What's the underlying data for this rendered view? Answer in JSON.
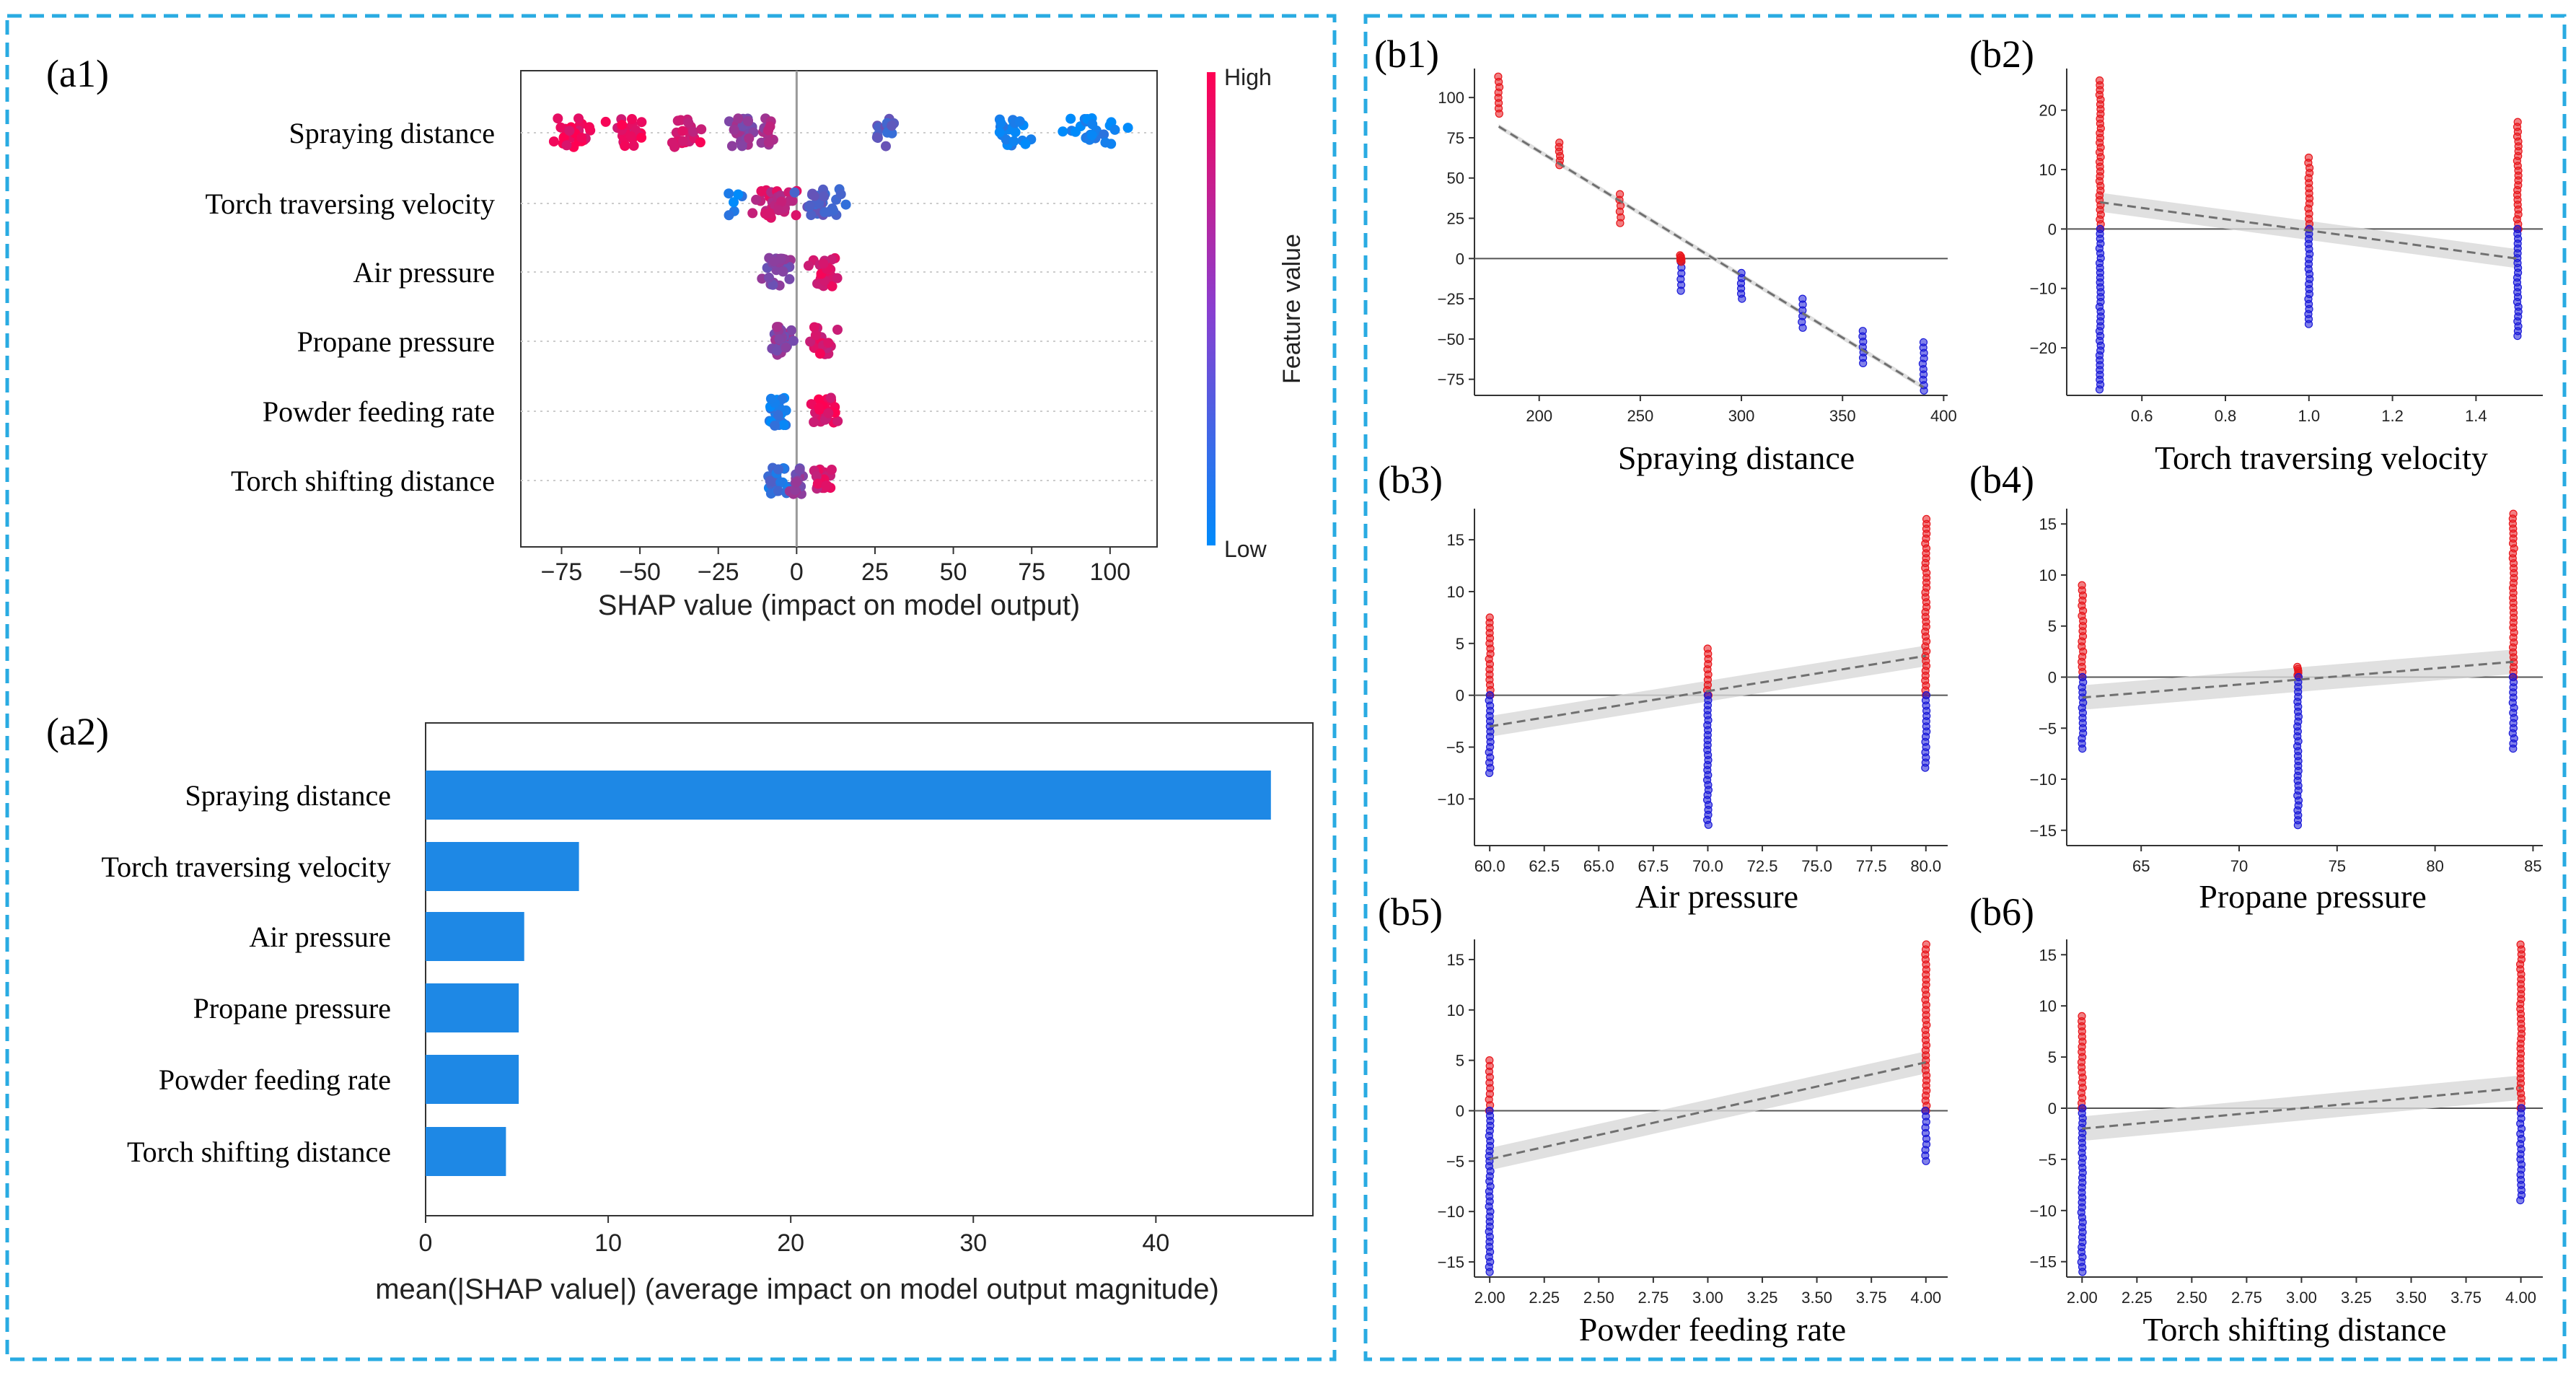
{
  "colors": {
    "frame_dash": "#29abe2",
    "bar_blue": "#1e88e5",
    "high_red": "#ff0052",
    "low_blue": "#008bfb",
    "dep_red": "#e8161b",
    "dep_blue": "#1a1ad8",
    "trend_gray": "#707070",
    "band_gray": "#d8d8d8"
  },
  "panel_labels": {
    "a1": "(a1)",
    "a2": "(a2)",
    "b1": "(b1)",
    "b2": "(b2)",
    "b3": "(b3)",
    "b4": "(b4)",
    "b5": "(b5)",
    "b6": "(b6)"
  },
  "chart_data": [
    {
      "id": "a1",
      "type": "scatter",
      "subtype": "shap-beeswarm",
      "features": [
        "Spraying distance",
        "Torch traversing velocity",
        "Air pressure",
        "Propane pressure",
        "Powder feeding rate",
        "Torch shifting distance"
      ],
      "xlabel": "SHAP value (impact on model output)",
      "xticks": [
        -75,
        -50,
        -25,
        0,
        25,
        50,
        75,
        100
      ],
      "xlim": [
        -88,
        115
      ],
      "colorbar": {
        "high": "High",
        "low": "Low",
        "label": "Feature value"
      },
      "clusters": [
        {
          "feature": 0,
          "center": -72,
          "width": 14,
          "color": 0.95,
          "n": 26
        },
        {
          "feature": 0,
          "center": -54,
          "width": 9,
          "color": 0.9,
          "n": 24
        },
        {
          "feature": 0,
          "center": -36,
          "width": 8,
          "color": 0.85,
          "n": 22
        },
        {
          "feature": 0,
          "center": -17,
          "width": 7,
          "color": 0.55,
          "n": 24
        },
        {
          "feature": 0,
          "center": -9,
          "width": 4,
          "color": 0.65,
          "n": 14
        },
        {
          "feature": 0,
          "center": 27,
          "width": 5,
          "color": 0.3,
          "n": 16
        },
        {
          "feature": 0,
          "center": 68,
          "width": 9,
          "color": 0.08,
          "n": 22
        },
        {
          "feature": 0,
          "center": 95,
          "width": 14,
          "color": 0.05,
          "n": 24
        },
        {
          "feature": 1,
          "center": -7,
          "width": 10,
          "color": 0.8,
          "n": 40
        },
        {
          "feature": 1,
          "center": 8,
          "width": 10,
          "color": 0.3,
          "n": 30
        },
        {
          "feature": 1,
          "center": -20,
          "width": 4,
          "color": 0.1,
          "n": 6
        },
        {
          "feature": 2,
          "center": -6,
          "width": 6,
          "color": 0.5,
          "n": 30
        },
        {
          "feature": 2,
          "center": 9,
          "width": 6,
          "color": 0.85,
          "n": 26
        },
        {
          "feature": 3,
          "center": -5,
          "width": 6,
          "color": 0.55,
          "n": 30
        },
        {
          "feature": 3,
          "center": 8,
          "width": 6,
          "color": 0.85,
          "n": 24
        },
        {
          "feature": 4,
          "center": -6,
          "width": 5,
          "color": 0.1,
          "n": 28
        },
        {
          "feature": 4,
          "center": 9,
          "width": 6,
          "color": 0.9,
          "n": 28
        },
        {
          "feature": 5,
          "center": -6,
          "width": 5,
          "color": 0.2,
          "n": 24
        },
        {
          "feature": 5,
          "center": 8,
          "width": 5,
          "color": 0.85,
          "n": 22
        },
        {
          "feature": 5,
          "center": 0,
          "width": 4,
          "color": 0.5,
          "n": 20
        }
      ]
    },
    {
      "id": "a2",
      "type": "bar",
      "orientation": "horizontal",
      "categories": [
        "Spraying distance",
        "Torch traversing velocity",
        "Air pressure",
        "Propane pressure",
        "Powder feeding rate",
        "Torch shifting distance"
      ],
      "values": [
        46.3,
        8.4,
        5.4,
        5.1,
        5.1,
        4.4
      ],
      "xlabel": "mean(|SHAP value|) (average impact on model output magnitude)",
      "xticks": [
        0,
        10,
        20,
        30,
        40
      ],
      "xlim": [
        0,
        48.6
      ]
    },
    {
      "id": "b1",
      "type": "scatter",
      "subtype": "shap-dependence",
      "xlabel": "Spraying distance",
      "xlim": [
        168,
        402
      ],
      "ylim": [
        -85,
        118
      ],
      "xticks": [
        "200",
        "250",
        "300",
        "350",
        "400"
      ],
      "xtick_values": [
        200,
        250,
        300,
        350,
        400
      ],
      "yticks": [
        "100",
        "75",
        "50",
        "25",
        "0",
        "−25",
        "−50",
        "−75"
      ],
      "ytick_values": [
        100,
        75,
        50,
        25,
        0,
        -25,
        -50,
        -75
      ],
      "trend": {
        "x1": 180,
        "y1": 82,
        "x2": 390,
        "y2": -80,
        "band": 1.5
      },
      "groups": [
        {
          "x": 180,
          "ymin": 90,
          "ymax": 113,
          "color": "red"
        },
        {
          "x": 210,
          "ymin": 58,
          "ymax": 72,
          "color": "red"
        },
        {
          "x": 240,
          "ymin": 22,
          "ymax": 40,
          "color": "red"
        },
        {
          "x": 270,
          "ymin": -20,
          "ymax": -2,
          "color": "blue"
        },
        {
          "x": 270,
          "ymin": -2,
          "ymax": 2,
          "color": "red"
        },
        {
          "x": 300,
          "ymin": -25,
          "ymax": -9,
          "color": "blue"
        },
        {
          "x": 330,
          "ymin": -43,
          "ymax": -25,
          "color": "blue"
        },
        {
          "x": 360,
          "ymin": -65,
          "ymax": -45,
          "color": "blue"
        },
        {
          "x": 390,
          "ymin": -82,
          "ymax": -52,
          "color": "blue"
        }
      ]
    },
    {
      "id": "b2",
      "type": "scatter",
      "subtype": "shap-dependence",
      "xlabel": "Torch traversing velocity",
      "xlim": [
        0.42,
        1.56
      ],
      "ylim": [
        -28,
        27
      ],
      "xticks": [
        "0.6",
        "0.8",
        "1.0",
        "1.2",
        "1.4"
      ],
      "xtick_values": [
        0.6,
        0.8,
        1.0,
        1.2,
        1.4
      ],
      "yticks": [
        "20",
        "10",
        "0",
        "−10",
        "−20"
      ],
      "ytick_values": [
        20,
        10,
        0,
        -10,
        -20
      ],
      "trend": {
        "x1": 0.5,
        "y1": 4.5,
        "x2": 1.5,
        "y2": -5,
        "band": 1.6
      },
      "groups": [
        {
          "x": 0.5,
          "ymin": 0,
          "ymax": 25,
          "color": "red"
        },
        {
          "x": 0.5,
          "ymin": -27,
          "ymax": 0,
          "color": "blue"
        },
        {
          "x": 1.0,
          "ymin": 0,
          "ymax": 12,
          "color": "red"
        },
        {
          "x": 1.0,
          "ymin": -16,
          "ymax": 0,
          "color": "blue"
        },
        {
          "x": 1.5,
          "ymin": 0,
          "ymax": 18,
          "color": "red"
        },
        {
          "x": 1.5,
          "ymin": -18,
          "ymax": 0,
          "color": "blue"
        }
      ]
    },
    {
      "id": "b3",
      "type": "scatter",
      "subtype": "shap-dependence",
      "xlabel": "Air pressure",
      "xlim": [
        59.3,
        81
      ],
      "ylim": [
        -14.5,
        18
      ],
      "xticks": [
        "60.0",
        "62.5",
        "65.0",
        "67.5",
        "70.0",
        "72.5",
        "75.0",
        "77.5",
        "80.0"
      ],
      "xtick_values": [
        60,
        62.5,
        65,
        67.5,
        70,
        72.5,
        75,
        77.5,
        80
      ],
      "yticks": [
        "15",
        "10",
        "5",
        "0",
        "−5",
        "−10"
      ],
      "ytick_values": [
        15,
        10,
        5,
        0,
        -5,
        -10
      ],
      "trend": {
        "x1": 60,
        "y1": -3,
        "x2": 80,
        "y2": 3.8,
        "band": 1.0
      },
      "groups": [
        {
          "x": 60,
          "ymin": 0,
          "ymax": 7.5,
          "color": "red"
        },
        {
          "x": 60,
          "ymin": -7.5,
          "ymax": 0,
          "color": "blue"
        },
        {
          "x": 70,
          "ymin": 0,
          "ymax": 4.5,
          "color": "red"
        },
        {
          "x": 70,
          "ymin": -12.5,
          "ymax": 0,
          "color": "blue"
        },
        {
          "x": 80,
          "ymin": 0,
          "ymax": 17,
          "color": "red"
        },
        {
          "x": 80,
          "ymin": -7,
          "ymax": 0,
          "color": "blue"
        }
      ]
    },
    {
      "id": "b4",
      "type": "scatter",
      "subtype": "shap-dependence",
      "xlabel": "Propane pressure",
      "xlim": [
        61.2,
        85.5
      ],
      "ylim": [
        -16.5,
        16.5
      ],
      "xticks": [
        "65",
        "70",
        "75",
        "80",
        "85"
      ],
      "xtick_values": [
        65,
        70,
        75,
        80,
        85
      ],
      "yticks": [
        "15",
        "10",
        "5",
        "0",
        "−5",
        "−10",
        "−15"
      ],
      "ytick_values": [
        15,
        10,
        5,
        0,
        -5,
        -10,
        -15
      ],
      "trend": {
        "x1": 62,
        "y1": -2,
        "x2": 84,
        "y2": 1.5,
        "band": 1.2
      },
      "groups": [
        {
          "x": 62,
          "ymin": 0,
          "ymax": 9,
          "color": "red"
        },
        {
          "x": 62,
          "ymin": -7,
          "ymax": 0,
          "color": "blue"
        },
        {
          "x": 73,
          "ymin": 0,
          "ymax": 1,
          "color": "red"
        },
        {
          "x": 73,
          "ymin": -14.5,
          "ymax": 0,
          "color": "blue"
        },
        {
          "x": 84,
          "ymin": 0,
          "ymax": 16,
          "color": "red"
        },
        {
          "x": 84,
          "ymin": -7,
          "ymax": 0,
          "color": "blue"
        }
      ]
    },
    {
      "id": "b5",
      "type": "scatter",
      "subtype": "shap-dependence",
      "xlabel": "Powder feeding rate",
      "xlim": [
        1.93,
        4.1
      ],
      "ylim": [
        -16.5,
        17
      ],
      "xticks": [
        "2.00",
        "2.25",
        "2.50",
        "2.75",
        "3.00",
        "3.25",
        "3.50",
        "3.75",
        "4.00"
      ],
      "xtick_values": [
        2,
        2.25,
        2.5,
        2.75,
        3,
        3.25,
        3.5,
        3.75,
        4
      ],
      "yticks": [
        "15",
        "10",
        "5",
        "0",
        "−5",
        "−10",
        "−15"
      ],
      "ytick_values": [
        15,
        10,
        5,
        0,
        -5,
        -10,
        -15
      ],
      "trend": {
        "x1": 2,
        "y1": -4.8,
        "x2": 4,
        "y2": 4.8,
        "band": 1.1
      },
      "groups": [
        {
          "x": 2,
          "ymin": 0,
          "ymax": 5,
          "color": "red"
        },
        {
          "x": 2,
          "ymin": -16,
          "ymax": 0,
          "color": "blue"
        },
        {
          "x": 4,
          "ymin": 0,
          "ymax": 16.5,
          "color": "red"
        },
        {
          "x": 4,
          "ymin": -5,
          "ymax": 0,
          "color": "blue"
        }
      ]
    },
    {
      "id": "b6",
      "type": "scatter",
      "subtype": "shap-dependence",
      "xlabel": "Torch shifting distance",
      "xlim": [
        1.93,
        4.1
      ],
      "ylim": [
        -16.5,
        16.5
      ],
      "xticks": [
        "2.00",
        "2.25",
        "2.50",
        "2.75",
        "3.00",
        "3.25",
        "3.50",
        "3.75",
        "4.00"
      ],
      "xtick_values": [
        2,
        2.25,
        2.5,
        2.75,
        3,
        3.25,
        3.5,
        3.75,
        4
      ],
      "yticks": [
        "15",
        "10",
        "5",
        "0",
        "−5",
        "−10",
        "−15"
      ],
      "ytick_values": [
        15,
        10,
        5,
        0,
        -5,
        -10,
        -15
      ],
      "trend": {
        "x1": 2,
        "y1": -2,
        "x2": 4,
        "y2": 2,
        "band": 1.2
      },
      "groups": [
        {
          "x": 2,
          "ymin": 0,
          "ymax": 9,
          "color": "red"
        },
        {
          "x": 2,
          "ymin": -16,
          "ymax": 0,
          "color": "blue"
        },
        {
          "x": 4,
          "ymin": 0,
          "ymax": 16,
          "color": "red"
        },
        {
          "x": 4,
          "ymin": -9,
          "ymax": 0,
          "color": "blue"
        }
      ]
    }
  ]
}
